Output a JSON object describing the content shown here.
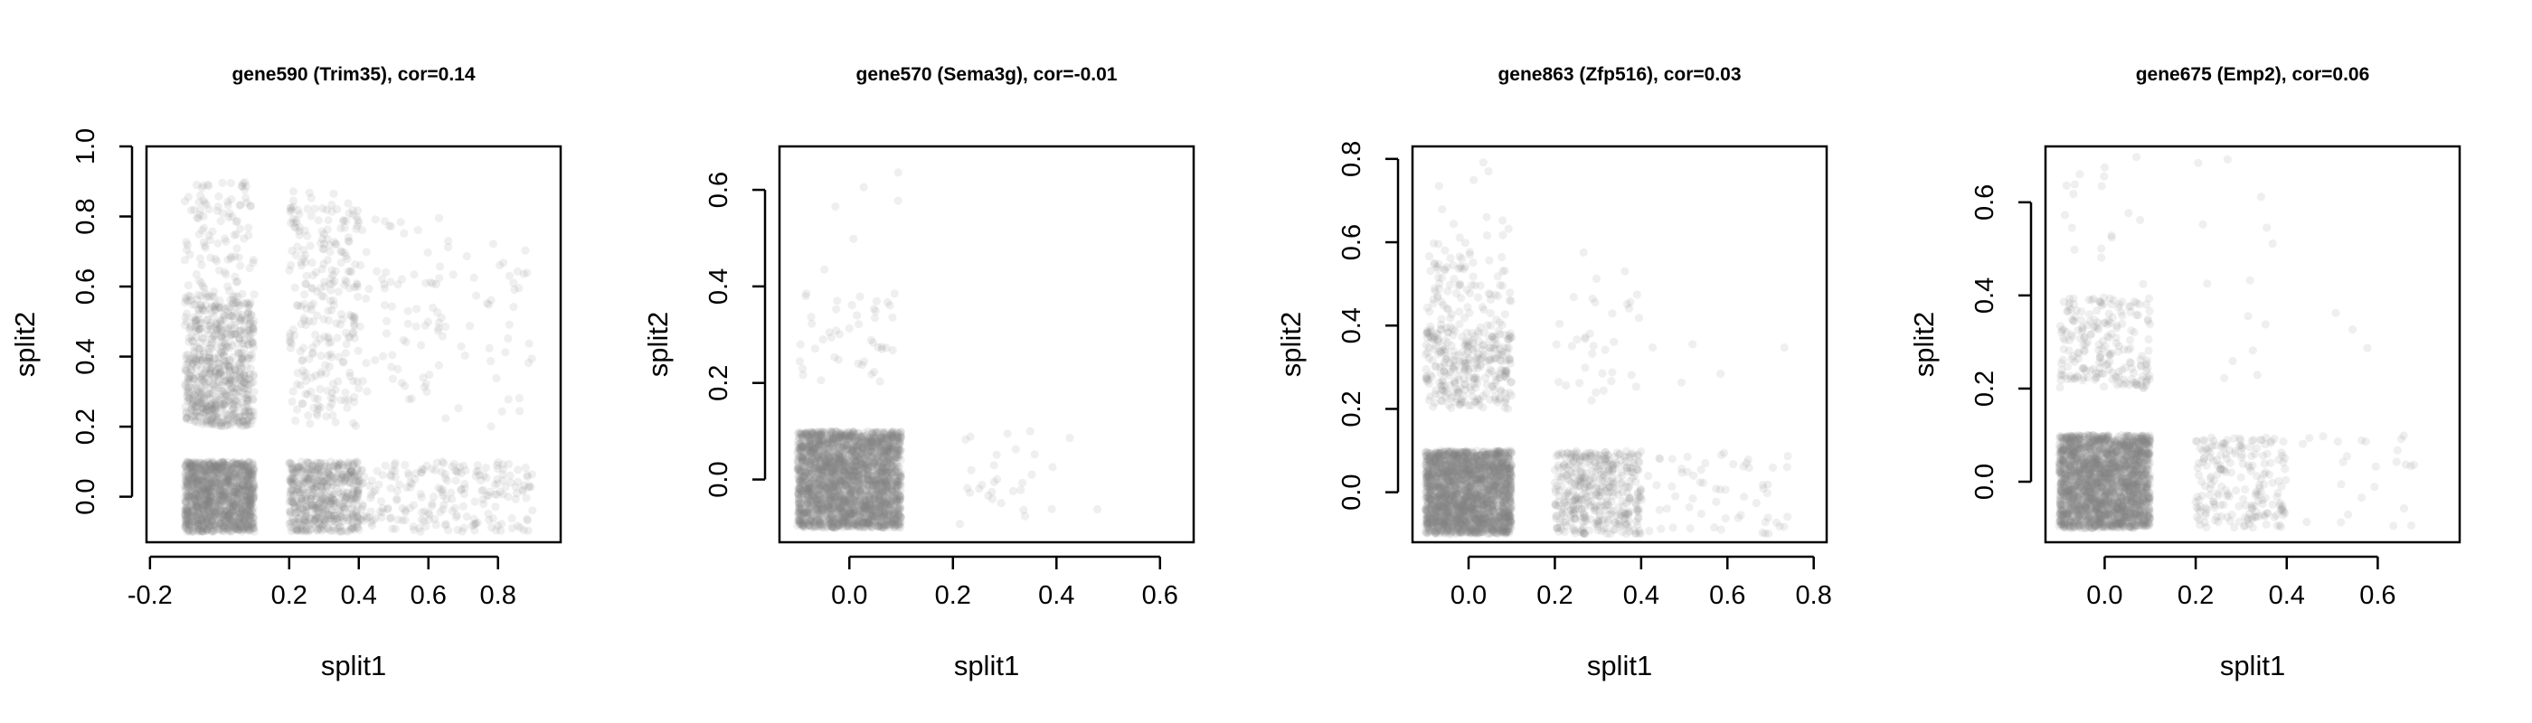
{
  "chart_data": [
    {
      "type": "scatter",
      "title": "gene590 (Trim35), cor=0.14",
      "xlabel": "split1",
      "ylabel": "split2",
      "xlim": [
        -0.21,
        0.98
      ],
      "ylim": [
        -0.13,
        1.0
      ],
      "xticks": [
        -0.2,
        0.2,
        0.4,
        0.6,
        0.8
      ],
      "xtick_labels": [
        "-0.2",
        "0.2",
        "0.4",
        "0.6",
        "0.8"
      ],
      "yticks": [
        0.0,
        0.2,
        0.4,
        0.6,
        0.8,
        1.0
      ],
      "ytick_labels": [
        "0.0",
        "0.2",
        "0.4",
        "0.6",
        "0.8",
        "1.0"
      ],
      "point_color": "#808080",
      "grid": false,
      "clusters": [
        {
          "x": [
            -0.1,
            0.1
          ],
          "y": [
            -0.1,
            0.1
          ],
          "count": 1300
        },
        {
          "x": [
            -0.1,
            0.1
          ],
          "y": [
            0.2,
            0.4
          ],
          "count": 450
        },
        {
          "x": [
            -0.1,
            0.1
          ],
          "y": [
            0.4,
            0.58
          ],
          "count": 250
        },
        {
          "x": [
            -0.1,
            0.1
          ],
          "y": [
            0.58,
            0.9
          ],
          "count": 100
        },
        {
          "x": [
            0.2,
            0.4
          ],
          "y": [
            -0.1,
            0.1
          ],
          "count": 550
        },
        {
          "x": [
            0.4,
            0.9
          ],
          "y": [
            -0.1,
            0.1
          ],
          "count": 220
        },
        {
          "x": [
            0.2,
            0.4
          ],
          "y": [
            0.2,
            0.88
          ],
          "count": 260
        },
        {
          "x": [
            0.4,
            0.9
          ],
          "y": [
            0.2,
            0.8
          ],
          "count": 110
        }
      ]
    },
    {
      "type": "scatter",
      "title": "gene570 (Sema3g), cor=-0.01",
      "xlabel": "split1",
      "ylabel": "split2",
      "xlim": [
        -0.135,
        0.665
      ],
      "ylim": [
        -0.13,
        0.69
      ],
      "xticks": [
        0.0,
        0.2,
        0.4,
        0.6
      ],
      "xtick_labels": [
        "0.0",
        "0.2",
        "0.4",
        "0.6"
      ],
      "yticks": [
        0.0,
        0.2,
        0.4,
        0.6
      ],
      "ytick_labels": [
        "0.0",
        "0.2",
        "0.4",
        "0.6"
      ],
      "point_color": "#808080",
      "grid": false,
      "clusters": [
        {
          "x": [
            -0.1,
            0.1
          ],
          "y": [
            -0.1,
            0.1
          ],
          "count": 2600
        },
        {
          "x": [
            -0.1,
            0.1
          ],
          "y": [
            0.2,
            0.4
          ],
          "count": 45
        },
        {
          "x": [
            -0.1,
            0.1
          ],
          "y": [
            0.4,
            0.66
          ],
          "count": 6
        },
        {
          "x": [
            0.2,
            0.4
          ],
          "y": [
            -0.1,
            0.1
          ],
          "count": 28
        },
        {
          "x": [
            0.4,
            0.6
          ],
          "y": [
            -0.1,
            0.1
          ],
          "count": 2
        }
      ]
    },
    {
      "type": "scatter",
      "title": "gene863 (Zfp516), cor=0.03",
      "xlabel": "split1",
      "ylabel": "split2",
      "xlim": [
        -0.13,
        0.83
      ],
      "ylim": [
        -0.12,
        0.83
      ],
      "xticks": [
        0.0,
        0.2,
        0.4,
        0.6,
        0.8
      ],
      "xtick_labels": [
        "0.0",
        "0.2",
        "0.4",
        "0.6",
        "0.8"
      ],
      "yticks": [
        0.0,
        0.2,
        0.4,
        0.6,
        0.8
      ],
      "ytick_labels": [
        "0.0",
        "0.2",
        "0.4",
        "0.6",
        "0.8"
      ],
      "point_color": "#808080",
      "grid": false,
      "clusters": [
        {
          "x": [
            -0.1,
            0.1
          ],
          "y": [
            -0.1,
            0.1
          ],
          "count": 2200
        },
        {
          "x": [
            -0.1,
            0.1
          ],
          "y": [
            0.2,
            0.4
          ],
          "count": 300
        },
        {
          "x": [
            -0.1,
            0.1
          ],
          "y": [
            0.4,
            0.6
          ],
          "count": 90
        },
        {
          "x": [
            -0.1,
            0.1
          ],
          "y": [
            0.6,
            0.8
          ],
          "count": 12
        },
        {
          "x": [
            0.2,
            0.4
          ],
          "y": [
            -0.1,
            0.1
          ],
          "count": 420
        },
        {
          "x": [
            0.4,
            0.75
          ],
          "y": [
            -0.1,
            0.1
          ],
          "count": 60
        },
        {
          "x": [
            0.2,
            0.4
          ],
          "y": [
            0.2,
            0.58
          ],
          "count": 35
        },
        {
          "x": [
            0.4,
            0.75
          ],
          "y": [
            0.2,
            0.4
          ],
          "count": 5
        }
      ]
    },
    {
      "type": "scatter",
      "title": "gene675 (Emp2), cor=0.06",
      "xlabel": "split1",
      "ylabel": "split2",
      "xlim": [
        -0.13,
        0.78
      ],
      "ylim": [
        -0.13,
        0.72
      ],
      "xticks": [
        0.0,
        0.2,
        0.4,
        0.6
      ],
      "xtick_labels": [
        "0.0",
        "0.2",
        "0.4",
        "0.6"
      ],
      "yticks": [
        0.0,
        0.2,
        0.4,
        0.6
      ],
      "ytick_labels": [
        "0.0",
        "0.2",
        "0.4",
        "0.6"
      ],
      "point_color": "#808080",
      "grid": false,
      "clusters": [
        {
          "x": [
            -0.1,
            0.1
          ],
          "y": [
            -0.1,
            0.1
          ],
          "count": 2300
        },
        {
          "x": [
            -0.1,
            0.1
          ],
          "y": [
            0.2,
            0.4
          ],
          "count": 210
        },
        {
          "x": [
            -0.1,
            0.1
          ],
          "y": [
            0.4,
            0.7
          ],
          "count": 18
        },
        {
          "x": [
            0.2,
            0.4
          ],
          "y": [
            -0.1,
            0.1
          ],
          "count": 200
        },
        {
          "x": [
            0.4,
            0.7
          ],
          "y": [
            -0.1,
            0.1
          ],
          "count": 25
        },
        {
          "x": [
            0.2,
            0.4
          ],
          "y": [
            0.2,
            0.7
          ],
          "count": 14
        },
        {
          "x": [
            0.4,
            0.7
          ],
          "y": [
            0.2,
            0.4
          ],
          "count": 3
        }
      ]
    }
  ]
}
